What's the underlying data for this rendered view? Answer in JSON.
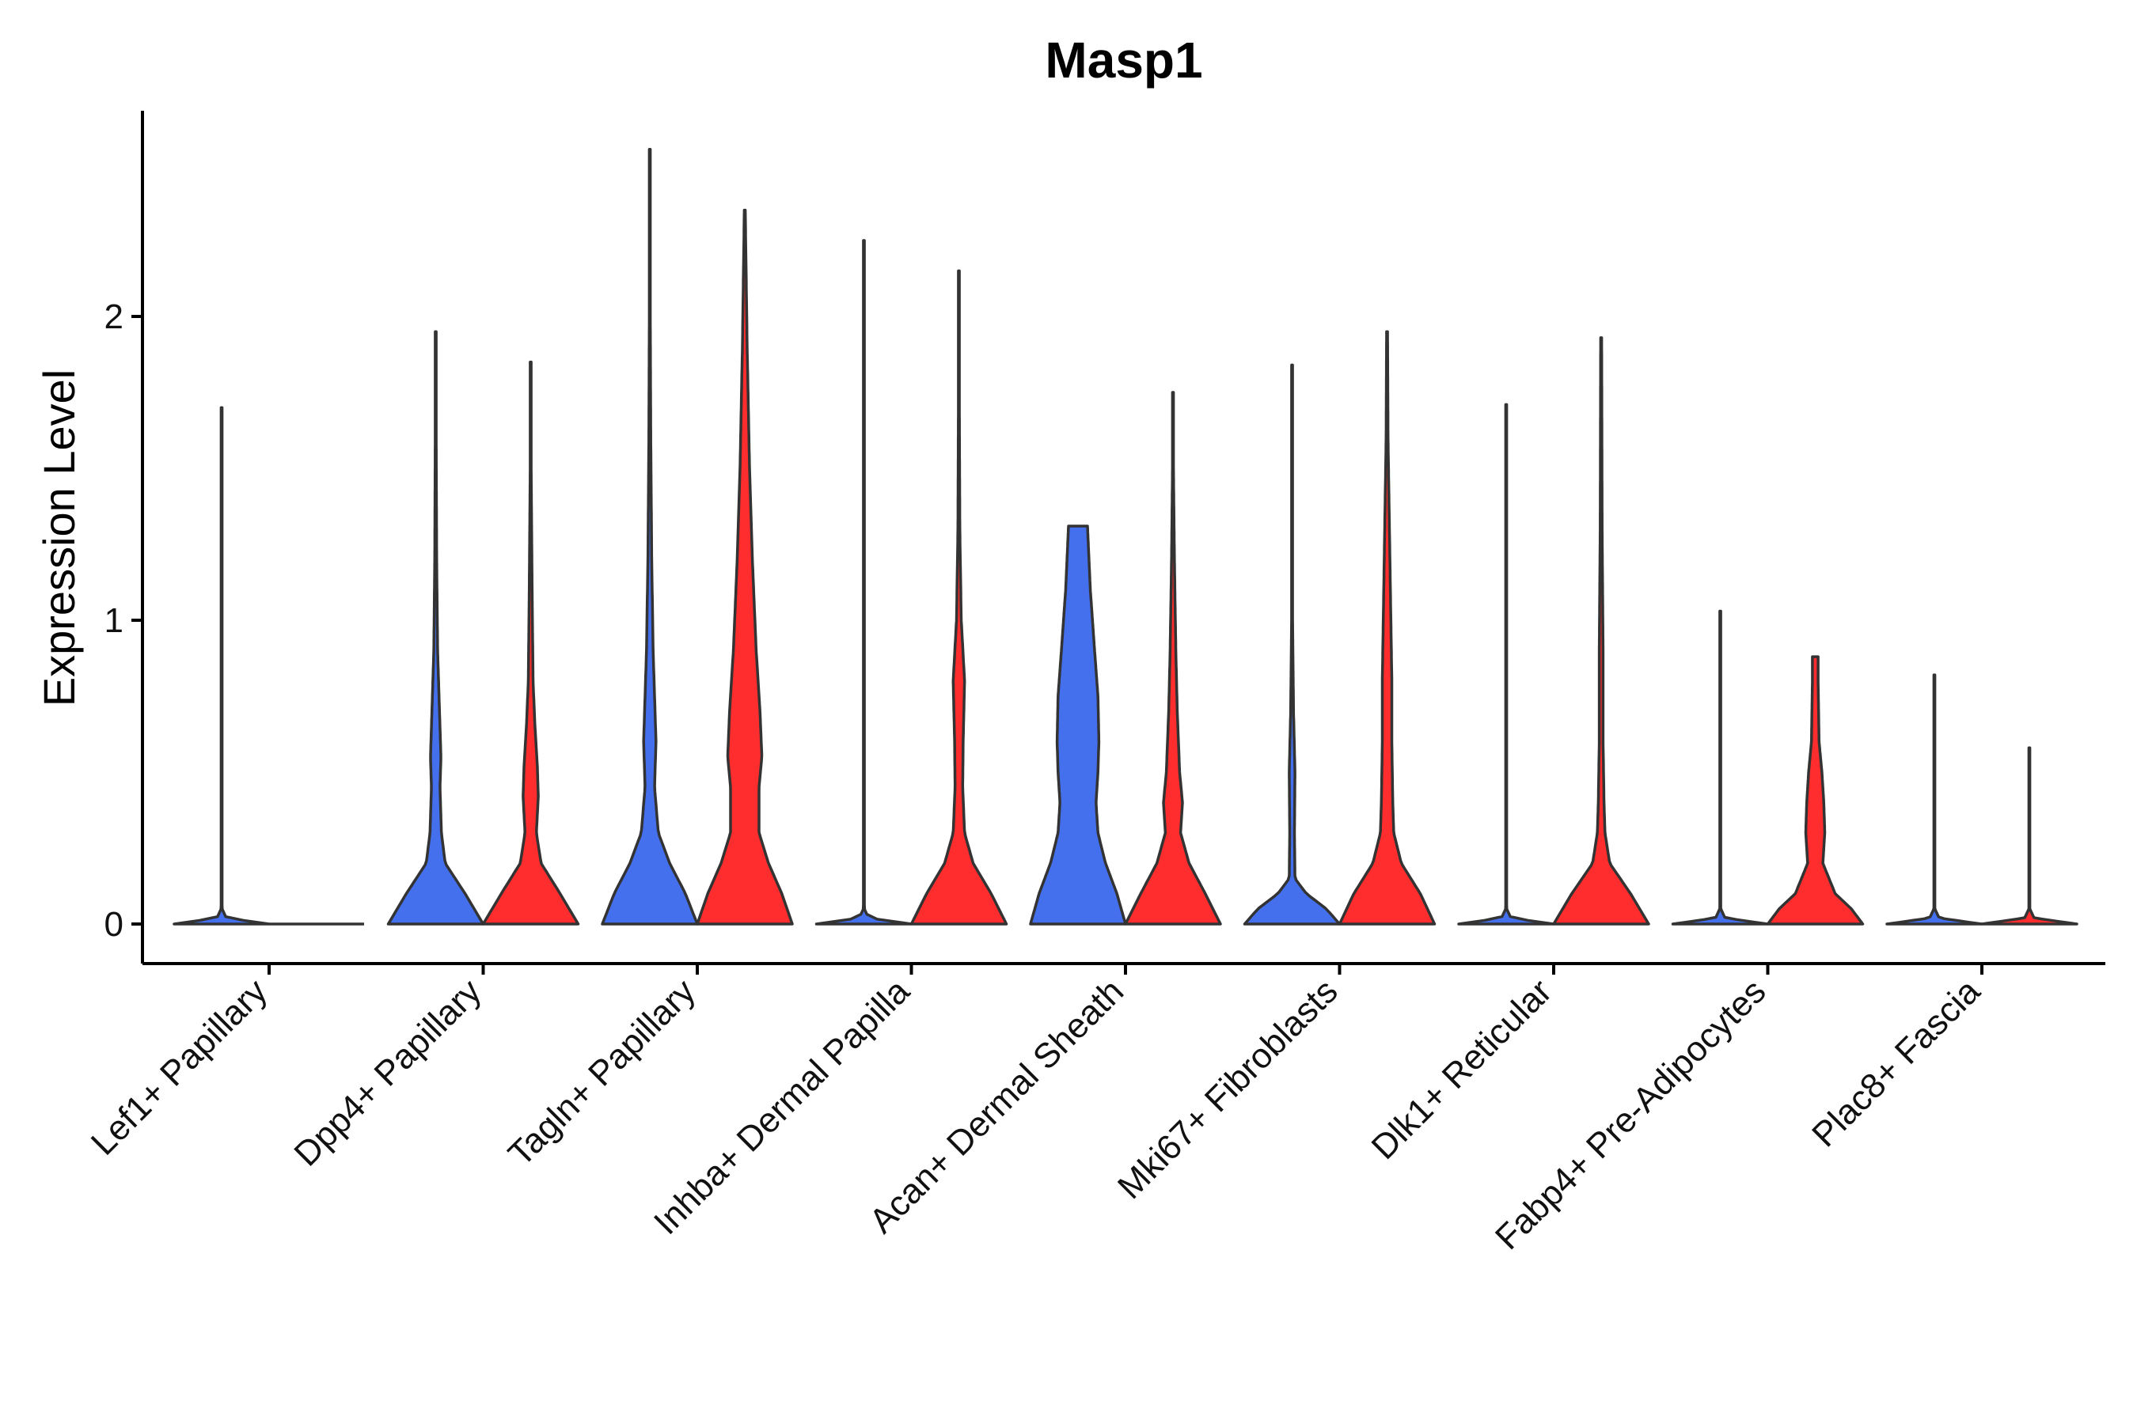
{
  "chart_data": {
    "type": "violin",
    "title": "Masp1",
    "xlabel": "",
    "ylabel": "Expression Level",
    "ylim": [
      -0.13,
      2.68
    ],
    "yticks": [
      0,
      1,
      2
    ],
    "grid": false,
    "legend": "none",
    "colors": {
      "group1": "#4470EE",
      "group2": "#FF2D2D",
      "outline": "#333333"
    },
    "categories": [
      "Lef1+ Papillary",
      "Dpp4+ Papillary",
      "Tagln+ Papillary",
      "Inhba+ Dermal Papilla",
      "Acan+ Dermal Sheath",
      "Mki67+ Fibroblasts",
      "Dlk1+ Reticular",
      "Fabp4+ Pre-Adipocytes",
      "Plac8+ Fascia"
    ],
    "violins": [
      {
        "category": 0,
        "group": 1,
        "max": 1.7,
        "profile": [
          [
            0,
            1.0
          ],
          [
            0.02,
            0.1
          ],
          [
            0.05,
            0.01
          ],
          [
            1.7,
            0.01
          ]
        ]
      },
      {
        "category": 0,
        "group": 2,
        "max": 0.0,
        "profile": []
      },
      {
        "category": 1,
        "group": 1,
        "max": 1.95,
        "profile": [
          [
            0,
            1.0
          ],
          [
            0.1,
            0.62
          ],
          [
            0.2,
            0.2
          ],
          [
            0.3,
            0.12
          ],
          [
            0.45,
            0.09
          ],
          [
            0.55,
            0.11
          ],
          [
            0.7,
            0.08
          ],
          [
            0.9,
            0.04
          ],
          [
            1.2,
            0.02
          ],
          [
            1.6,
            0.01
          ],
          [
            1.95,
            0.01
          ]
        ]
      },
      {
        "category": 1,
        "group": 2,
        "max": 1.85,
        "profile": [
          [
            0,
            1.0
          ],
          [
            0.1,
            0.62
          ],
          [
            0.2,
            0.22
          ],
          [
            0.3,
            0.12
          ],
          [
            0.42,
            0.16
          ],
          [
            0.52,
            0.14
          ],
          [
            0.65,
            0.09
          ],
          [
            0.8,
            0.05
          ],
          [
            1.1,
            0.03
          ],
          [
            1.5,
            0.01
          ],
          [
            1.85,
            0.01
          ]
        ]
      },
      {
        "category": 2,
        "group": 1,
        "max": 2.55,
        "profile": [
          [
            0,
            1.0
          ],
          [
            0.1,
            0.75
          ],
          [
            0.2,
            0.42
          ],
          [
            0.3,
            0.18
          ],
          [
            0.45,
            0.1
          ],
          [
            0.6,
            0.13
          ],
          [
            0.75,
            0.1
          ],
          [
            0.9,
            0.07
          ],
          [
            1.2,
            0.04
          ],
          [
            1.6,
            0.02
          ],
          [
            2.0,
            0.01
          ],
          [
            2.55,
            0.01
          ]
        ]
      },
      {
        "category": 2,
        "group": 2,
        "max": 2.35,
        "profile": [
          [
            0,
            1.0
          ],
          [
            0.1,
            0.78
          ],
          [
            0.2,
            0.5
          ],
          [
            0.3,
            0.3
          ],
          [
            0.45,
            0.3
          ],
          [
            0.55,
            0.36
          ],
          [
            0.7,
            0.32
          ],
          [
            0.9,
            0.24
          ],
          [
            1.2,
            0.16
          ],
          [
            1.5,
            0.1
          ],
          [
            1.9,
            0.05
          ],
          [
            2.35,
            0.01
          ]
        ]
      },
      {
        "category": 3,
        "group": 1,
        "max": 2.25,
        "profile": [
          [
            0,
            1.0
          ],
          [
            0.02,
            0.1
          ],
          [
            0.05,
            0.01
          ],
          [
            2.25,
            0.01
          ]
        ]
      },
      {
        "category": 3,
        "group": 2,
        "max": 2.15,
        "profile": [
          [
            0,
            1.0
          ],
          [
            0.1,
            0.68
          ],
          [
            0.2,
            0.3
          ],
          [
            0.3,
            0.12
          ],
          [
            0.45,
            0.08
          ],
          [
            0.6,
            0.09
          ],
          [
            0.8,
            0.12
          ],
          [
            1.0,
            0.05
          ],
          [
            1.3,
            0.02
          ],
          [
            1.7,
            0.01
          ],
          [
            2.15,
            0.01
          ]
        ]
      },
      {
        "category": 4,
        "group": 1,
        "max": 1.31,
        "profile": [
          [
            0,
            1.0
          ],
          [
            0.1,
            0.82
          ],
          [
            0.2,
            0.58
          ],
          [
            0.3,
            0.42
          ],
          [
            0.4,
            0.38
          ],
          [
            0.5,
            0.42
          ],
          [
            0.6,
            0.44
          ],
          [
            0.75,
            0.42
          ],
          [
            0.9,
            0.35
          ],
          [
            1.1,
            0.26
          ],
          [
            1.31,
            0.2
          ]
        ]
      },
      {
        "category": 4,
        "group": 2,
        "max": 1.75,
        "profile": [
          [
            0,
            1.0
          ],
          [
            0.1,
            0.68
          ],
          [
            0.2,
            0.34
          ],
          [
            0.3,
            0.16
          ],
          [
            0.4,
            0.2
          ],
          [
            0.5,
            0.14
          ],
          [
            0.7,
            0.09
          ],
          [
            0.9,
            0.06
          ],
          [
            1.2,
            0.03
          ],
          [
            1.5,
            0.01
          ],
          [
            1.75,
            0.01
          ]
        ]
      },
      {
        "category": 5,
        "group": 1,
        "max": 1.84,
        "profile": [
          [
            0,
            1.0
          ],
          [
            0.05,
            0.72
          ],
          [
            0.1,
            0.3
          ],
          [
            0.15,
            0.06
          ],
          [
            0.3,
            0.05
          ],
          [
            0.5,
            0.06
          ],
          [
            0.7,
            0.03
          ],
          [
            1.0,
            0.01
          ],
          [
            1.84,
            0.01
          ]
        ]
      },
      {
        "category": 5,
        "group": 2,
        "max": 1.95,
        "profile": [
          [
            0,
            1.0
          ],
          [
            0.1,
            0.7
          ],
          [
            0.2,
            0.3
          ],
          [
            0.3,
            0.14
          ],
          [
            0.4,
            0.12
          ],
          [
            0.6,
            0.1
          ],
          [
            0.8,
            0.1
          ],
          [
            1.0,
            0.08
          ],
          [
            1.3,
            0.05
          ],
          [
            1.6,
            0.02
          ],
          [
            1.95,
            0.01
          ]
        ]
      },
      {
        "category": 6,
        "group": 1,
        "max": 1.71,
        "profile": [
          [
            0,
            1.0
          ],
          [
            0.02,
            0.1
          ],
          [
            0.05,
            0.01
          ],
          [
            1.71,
            0.01
          ]
        ]
      },
      {
        "category": 6,
        "group": 2,
        "max": 1.93,
        "profile": [
          [
            0,
            1.0
          ],
          [
            0.1,
            0.62
          ],
          [
            0.2,
            0.18
          ],
          [
            0.3,
            0.08
          ],
          [
            0.4,
            0.06
          ],
          [
            0.6,
            0.04
          ],
          [
            0.9,
            0.04
          ],
          [
            1.3,
            0.02
          ],
          [
            1.93,
            0.01
          ]
        ]
      },
      {
        "category": 7,
        "group": 1,
        "max": 1.03,
        "profile": [
          [
            0,
            1.0
          ],
          [
            0.02,
            0.1
          ],
          [
            0.05,
            0.01
          ],
          [
            1.03,
            0.01
          ]
        ]
      },
      {
        "category": 7,
        "group": 2,
        "max": 0.88,
        "profile": [
          [
            0,
            1.0
          ],
          [
            0.05,
            0.76
          ],
          [
            0.1,
            0.42
          ],
          [
            0.2,
            0.16
          ],
          [
            0.3,
            0.2
          ],
          [
            0.4,
            0.18
          ],
          [
            0.5,
            0.14
          ],
          [
            0.6,
            0.08
          ],
          [
            0.7,
            0.07
          ],
          [
            0.8,
            0.06
          ],
          [
            0.88,
            0.06
          ]
        ]
      },
      {
        "category": 8,
        "group": 1,
        "max": 0.82,
        "profile": [
          [
            0,
            1.0
          ],
          [
            0.02,
            0.1
          ],
          [
            0.05,
            0.01
          ],
          [
            0.82,
            0.01
          ]
        ]
      },
      {
        "category": 8,
        "group": 2,
        "max": 0.58,
        "profile": [
          [
            0,
            1.0
          ],
          [
            0.02,
            0.1
          ],
          [
            0.05,
            0.01
          ],
          [
            0.58,
            0.01
          ]
        ]
      }
    ]
  }
}
